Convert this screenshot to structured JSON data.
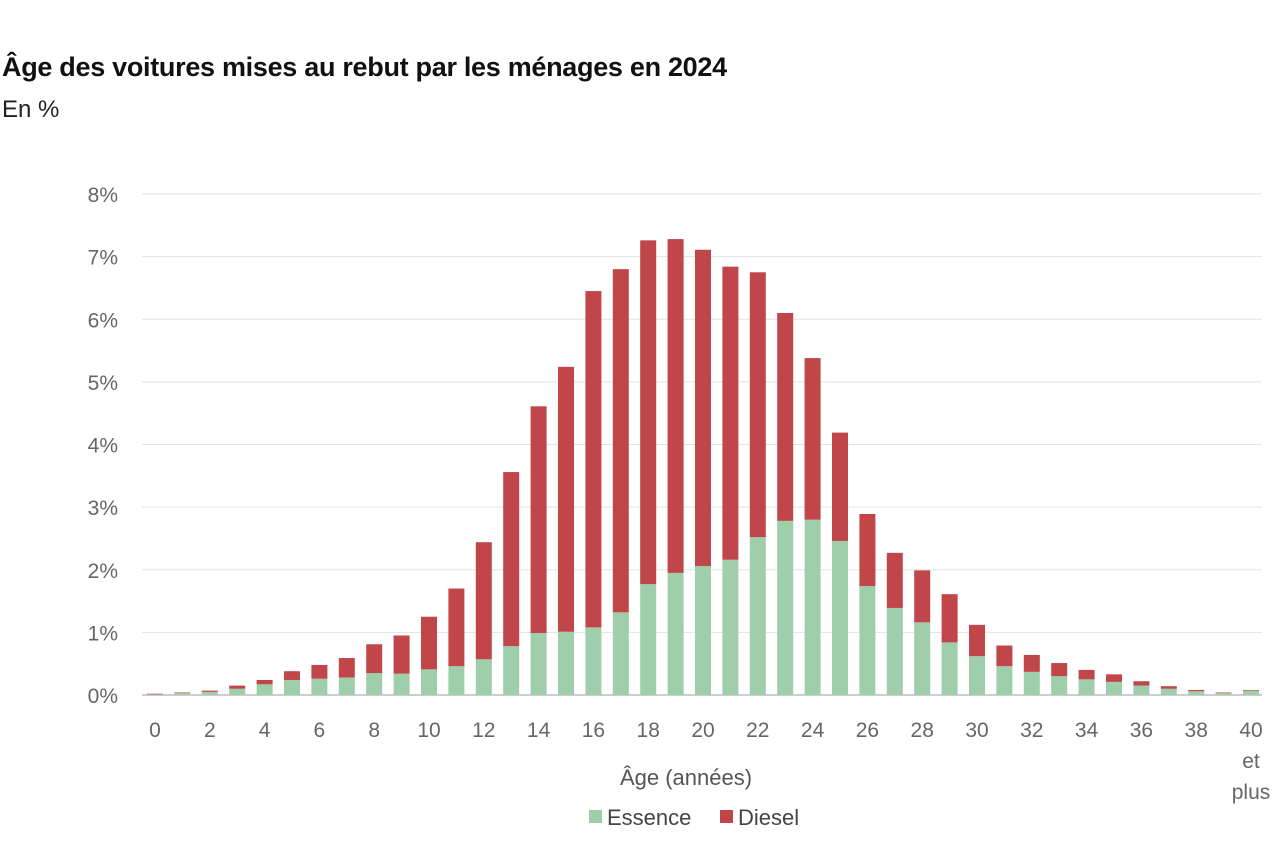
{
  "title": "Âge des voitures mises au rebut par les ménages en 2024",
  "subtitle": "En %",
  "chart_data": {
    "type": "bar",
    "stacked": true,
    "xlabel": "Âge (années)",
    "ylabel": "",
    "ylim": [
      0,
      8
    ],
    "y_ticks": [
      "0%",
      "1%",
      "2%",
      "3%",
      "4%",
      "5%",
      "6%",
      "7%",
      "8%"
    ],
    "grid": true,
    "legend_position": "bottom",
    "categories": [
      "0",
      "1",
      "2",
      "3",
      "4",
      "5",
      "6",
      "7",
      "8",
      "9",
      "10",
      "11",
      "12",
      "13",
      "14",
      "15",
      "16",
      "17",
      "18",
      "19",
      "20",
      "21",
      "22",
      "23",
      "24",
      "25",
      "26",
      "27",
      "28",
      "29",
      "30",
      "31",
      "32",
      "33",
      "34",
      "35",
      "36",
      "37",
      "38",
      "39",
      "40 et plus"
    ],
    "x_tick_labels": [
      {
        "index": 0,
        "lines": [
          "0"
        ]
      },
      {
        "index": 2,
        "lines": [
          "2"
        ]
      },
      {
        "index": 4,
        "lines": [
          "4"
        ]
      },
      {
        "index": 6,
        "lines": [
          "6"
        ]
      },
      {
        "index": 8,
        "lines": [
          "8"
        ]
      },
      {
        "index": 10,
        "lines": [
          "10"
        ]
      },
      {
        "index": 12,
        "lines": [
          "12"
        ]
      },
      {
        "index": 14,
        "lines": [
          "14"
        ]
      },
      {
        "index": 16,
        "lines": [
          "16"
        ]
      },
      {
        "index": 18,
        "lines": [
          "18"
        ]
      },
      {
        "index": 20,
        "lines": [
          "20"
        ]
      },
      {
        "index": 22,
        "lines": [
          "22"
        ]
      },
      {
        "index": 24,
        "lines": [
          "24"
        ]
      },
      {
        "index": 26,
        "lines": [
          "26"
        ]
      },
      {
        "index": 28,
        "lines": [
          "28"
        ]
      },
      {
        "index": 30,
        "lines": [
          "30"
        ]
      },
      {
        "index": 32,
        "lines": [
          "32"
        ]
      },
      {
        "index": 34,
        "lines": [
          "34"
        ]
      },
      {
        "index": 36,
        "lines": [
          "36"
        ]
      },
      {
        "index": 38,
        "lines": [
          "38"
        ]
      },
      {
        "index": 40,
        "lines": [
          "40",
          "et",
          "plus"
        ]
      }
    ],
    "series": [
      {
        "name": "Essence",
        "color": "#9fcfaa",
        "values": [
          0.01,
          0.03,
          0.05,
          0.1,
          0.17,
          0.24,
          0.26,
          0.28,
          0.35,
          0.34,
          0.41,
          0.46,
          0.57,
          0.78,
          0.99,
          1.01,
          1.08,
          1.32,
          1.77,
          1.95,
          2.06,
          2.16,
          2.52,
          2.78,
          2.8,
          2.46,
          1.74,
          1.39,
          1.16,
          0.84,
          0.62,
          0.46,
          0.37,
          0.3,
          0.25,
          0.21,
          0.15,
          0.1,
          0.06,
          0.03,
          0.07
        ]
      },
      {
        "name": "Diesel",
        "color": "#c0464a",
        "values": [
          0.01,
          0.01,
          0.02,
          0.05,
          0.07,
          0.14,
          0.22,
          0.31,
          0.46,
          0.61,
          0.84,
          1.24,
          1.87,
          2.78,
          3.62,
          4.23,
          5.37,
          5.48,
          5.49,
          5.33,
          5.05,
          4.68,
          4.23,
          3.32,
          2.58,
          1.73,
          1.15,
          0.88,
          0.83,
          0.77,
          0.5,
          0.33,
          0.27,
          0.21,
          0.15,
          0.12,
          0.07,
          0.04,
          0.02,
          0.01,
          0.01
        ]
      }
    ]
  }
}
